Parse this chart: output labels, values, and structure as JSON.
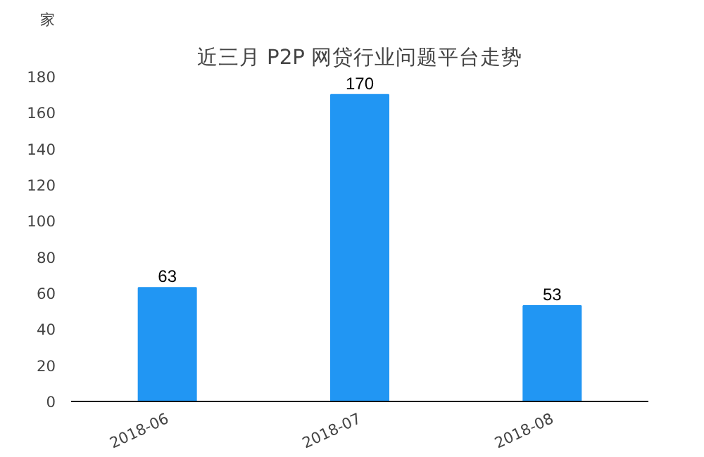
{
  "chart_data": {
    "type": "bar",
    "title": "近三月 P2P 网贷行业问题平台走势",
    "ylabel": "家",
    "categories": [
      "2018-06",
      "2018-07",
      "2018-08"
    ],
    "values": [
      63,
      170,
      53
    ],
    "color": "#2196f3",
    "ylim": [
      0,
      180
    ],
    "yticks": [
      0,
      20,
      40,
      60,
      80,
      100,
      120,
      140,
      160,
      180
    ],
    "data_labels": true,
    "grid": false
  }
}
